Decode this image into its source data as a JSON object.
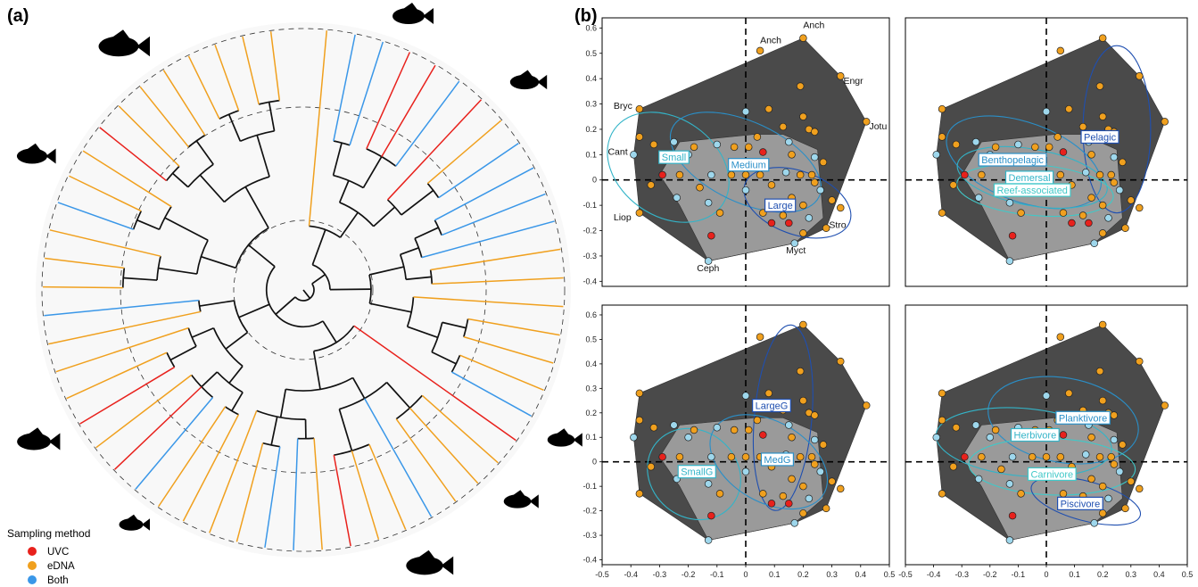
{
  "panel_a": {
    "label": "(a)",
    "legend": {
      "title": "Sampling method",
      "items": [
        {
          "name": "UVC",
          "color": "#e8211c"
        },
        {
          "name": "eDNA",
          "color": "#f0a01e"
        },
        {
          "name": "Both",
          "color": "#3a97e8"
        }
      ]
    },
    "branch_colors": {
      "uvc": "#e8211c",
      "edna": "#f0a01e",
      "both": "#3a97e8",
      "internal": "#111111"
    },
    "fish_icons": [
      "boxfish-silhouette-icon",
      "reef-fish-silhouette-icon",
      "herring-silhouette-icon",
      "angelfish-silhouette-icon",
      "tuna-silhouette-icon",
      "grouper-silhouette-icon",
      "jack-silhouette-icon",
      "lionfish-silhouette-icon",
      "damselfish-silhouette-icon"
    ]
  },
  "panel_b": {
    "label": "(b)"
  },
  "chart_data": {
    "type": "scatter",
    "description": "Four functional-space scatter panels sharing the same points; hulls and ellipses per grouping",
    "xlim": [
      -0.5,
      0.5
    ],
    "ylim": [
      -0.42,
      0.64
    ],
    "xticks": [
      "-0.5",
      "-0.4",
      "-0.3",
      "-0.2",
      "-0.1",
      "0",
      "0.1",
      "0.2",
      "0.3",
      "0.4",
      "0.5"
    ],
    "yticks": [
      "0.6",
      "0.5",
      "0.4",
      "0.3",
      "0.2",
      "0.1",
      "0",
      "-0.1",
      "-0.2",
      "-0.3",
      "-0.4"
    ],
    "colors": {
      "uvc": "#e8211c",
      "edna": "#f0a01e",
      "both": "#9ed7ec",
      "outer_hull": "#4a4a4a",
      "inner_hull": "#9a9a9a"
    },
    "outer_hull": [
      [
        -0.37,
        0.28
      ],
      [
        0.2,
        0.56
      ],
      [
        0.33,
        0.41
      ],
      [
        0.42,
        0.23
      ],
      [
        0.28,
        -0.19
      ],
      [
        0.17,
        -0.25
      ],
      [
        -0.13,
        -0.32
      ],
      [
        -0.37,
        -0.13
      ],
      [
        -0.39,
        0.1
      ]
    ],
    "inner_hull": [
      [
        -0.23,
        0.15
      ],
      [
        0.03,
        0.18
      ],
      [
        0.13,
        0.18
      ],
      [
        0.25,
        0.12
      ],
      [
        0.27,
        -0.15
      ],
      [
        0.17,
        -0.25
      ],
      [
        -0.13,
        -0.32
      ],
      [
        -0.23,
        -0.1
      ],
      [
        -0.3,
        0.02
      ]
    ],
    "points": [
      {
        "x": 0.2,
        "y": 0.56,
        "g": "edna"
      },
      {
        "x": 0.05,
        "y": 0.51,
        "g": "edna"
      },
      {
        "x": 0.33,
        "y": 0.41,
        "g": "edna"
      },
      {
        "x": 0.19,
        "y": 0.37,
        "g": "edna"
      },
      {
        "x": 0.42,
        "y": 0.23,
        "g": "edna"
      },
      {
        "x": -0.37,
        "y": 0.28,
        "g": "edna"
      },
      {
        "x": 0.0,
        "y": 0.27,
        "g": "both"
      },
      {
        "x": 0.08,
        "y": 0.28,
        "g": "edna"
      },
      {
        "x": 0.13,
        "y": 0.21,
        "g": "edna"
      },
      {
        "x": 0.2,
        "y": 0.25,
        "g": "edna"
      },
      {
        "x": 0.22,
        "y": 0.2,
        "g": "edna"
      },
      {
        "x": 0.24,
        "y": 0.19,
        "g": "edna"
      },
      {
        "x": -0.37,
        "y": 0.17,
        "g": "edna"
      },
      {
        "x": -0.32,
        "y": 0.14,
        "g": "edna"
      },
      {
        "x": -0.25,
        "y": 0.15,
        "g": "both"
      },
      {
        "x": -0.18,
        "y": 0.13,
        "g": "edna"
      },
      {
        "x": -0.1,
        "y": 0.14,
        "g": "both"
      },
      {
        "x": -0.04,
        "y": 0.13,
        "g": "edna"
      },
      {
        "x": 0.01,
        "y": 0.13,
        "g": "edna"
      },
      {
        "x": 0.04,
        "y": 0.17,
        "g": "edna"
      },
      {
        "x": 0.15,
        "y": 0.15,
        "g": "both"
      },
      {
        "x": 0.16,
        "y": 0.1,
        "g": "edna"
      },
      {
        "x": -0.39,
        "y": 0.1,
        "g": "both"
      },
      {
        "x": -0.2,
        "y": 0.1,
        "g": "both"
      },
      {
        "x": 0.06,
        "y": 0.11,
        "g": "uvc"
      },
      {
        "x": 0.24,
        "y": 0.09,
        "g": "both"
      },
      {
        "x": 0.27,
        "y": 0.07,
        "g": "edna"
      },
      {
        "x": -0.29,
        "y": 0.02,
        "g": "uvc"
      },
      {
        "x": -0.23,
        "y": 0.02,
        "g": "edna"
      },
      {
        "x": -0.12,
        "y": 0.02,
        "g": "both"
      },
      {
        "x": -0.05,
        "y": 0.02,
        "g": "edna"
      },
      {
        "x": 0.0,
        "y": 0.02,
        "g": "edna"
      },
      {
        "x": 0.05,
        "y": 0.02,
        "g": "edna"
      },
      {
        "x": 0.14,
        "y": 0.03,
        "g": "both"
      },
      {
        "x": 0.19,
        "y": 0.02,
        "g": "edna"
      },
      {
        "x": 0.23,
        "y": 0.02,
        "g": "edna"
      },
      {
        "x": -0.33,
        "y": -0.02,
        "g": "edna"
      },
      {
        "x": -0.16,
        "y": -0.03,
        "g": "edna"
      },
      {
        "x": 0.09,
        "y": -0.02,
        "g": "edna"
      },
      {
        "x": 0.24,
        "y": -0.01,
        "g": "edna"
      },
      {
        "x": 0.26,
        "y": -0.04,
        "g": "both"
      },
      {
        "x": 0.0,
        "y": -0.04,
        "g": "both"
      },
      {
        "x": -0.24,
        "y": -0.07,
        "g": "both"
      },
      {
        "x": -0.13,
        "y": -0.09,
        "g": "both"
      },
      {
        "x": 0.16,
        "y": -0.07,
        "g": "edna"
      },
      {
        "x": 0.2,
        "y": -0.1,
        "g": "edna"
      },
      {
        "x": 0.3,
        "y": -0.08,
        "g": "edna"
      },
      {
        "x": 0.33,
        "y": -0.11,
        "g": "edna"
      },
      {
        "x": -0.09,
        "y": -0.13,
        "g": "edna"
      },
      {
        "x": 0.06,
        "y": -0.13,
        "g": "edna"
      },
      {
        "x": 0.13,
        "y": -0.14,
        "g": "edna"
      },
      {
        "x": 0.22,
        "y": -0.15,
        "g": "both"
      },
      {
        "x": -0.37,
        "y": -0.13,
        "g": "edna"
      },
      {
        "x": 0.09,
        "y": -0.17,
        "g": "uvc"
      },
      {
        "x": 0.15,
        "y": -0.17,
        "g": "uvc"
      },
      {
        "x": -0.12,
        "y": -0.22,
        "g": "uvc"
      },
      {
        "x": 0.28,
        "y": -0.19,
        "g": "edna"
      },
      {
        "x": 0.2,
        "y": -0.21,
        "g": "edna"
      },
      {
        "x": 0.17,
        "y": -0.25,
        "g": "both"
      },
      {
        "x": -0.13,
        "y": -0.32,
        "g": "both"
      }
    ],
    "annotations": [
      {
        "text": "Anch",
        "x": 0.2,
        "y": 0.6
      },
      {
        "text": "Anch",
        "x": 0.05,
        "y": 0.54
      },
      {
        "text": "Engr",
        "x": 0.34,
        "y": 0.38
      },
      {
        "text": "Bryc",
        "x": -0.46,
        "y": 0.28
      },
      {
        "text": "Jotu",
        "x": 0.43,
        "y": 0.2
      },
      {
        "text": "Cant",
        "x": -0.48,
        "y": 0.1
      },
      {
        "text": "Liop",
        "x": -0.46,
        "y": -0.16
      },
      {
        "text": "Stro",
        "x": 0.29,
        "y": -0.19
      },
      {
        "text": "Myct",
        "x": 0.14,
        "y": -0.29
      },
      {
        "text": "Ceph",
        "x": -0.17,
        "y": -0.36
      }
    ],
    "panels": [
      {
        "name": "size",
        "groups": [
          {
            "label": "Small",
            "lx": -0.25,
            "ly": 0.09,
            "color": "#33b4c8",
            "ellipse": {
              "cx": -0.27,
              "cy": 0.05,
              "rx": 0.17,
              "ry": 0.26,
              "angle": -55
            }
          },
          {
            "label": "Medium",
            "lx": 0.01,
            "ly": 0.06,
            "color": "#2a8fc8",
            "ellipse": {
              "cx": 0.0,
              "cy": 0.07,
              "rx": 0.14,
              "ry": 0.32,
              "angle": -65
            }
          },
          {
            "label": "Large",
            "lx": 0.12,
            "ly": -0.1,
            "color": "#1f4fb0",
            "ellipse": {
              "cx": 0.18,
              "cy": -0.09,
              "rx": 0.11,
              "ry": 0.22,
              "angle": -70
            }
          }
        ]
      },
      {
        "name": "habitat",
        "groups": [
          {
            "label": "Pelagic",
            "lx": 0.19,
            "ly": 0.17,
            "color": "#1f4fb0",
            "ellipse": {
              "cx": 0.25,
              "cy": 0.2,
              "rx": 0.12,
              "ry": 0.33,
              "angle": 0
            }
          },
          {
            "label": "Benthopelagic",
            "lx": -0.12,
            "ly": 0.08,
            "color": "#2a8fc8",
            "ellipse": {
              "cx": -0.08,
              "cy": 0.07,
              "rx": 0.14,
              "ry": 0.32,
              "angle": -70
            }
          },
          {
            "label": "Demersal",
            "lx": -0.06,
            "ly": 0.01,
            "color": "#33b4c8",
            "ellipse": {
              "cx": -0.05,
              "cy": 0.01,
              "rx": 0.1,
              "ry": 0.3,
              "angle": -80
            }
          },
          {
            "label": "Reef-associated",
            "lx": -0.05,
            "ly": -0.04,
            "color": "#40c8c8",
            "ellipse": {
              "cx": -0.04,
              "cy": -0.04,
              "rx": 0.09,
              "ry": 0.31,
              "angle": -85
            }
          }
        ]
      },
      {
        "name": "growth",
        "groups": [
          {
            "label": "LargeG",
            "lx": 0.09,
            "ly": 0.23,
            "color": "#1f4fb0",
            "ellipse": {
              "cx": 0.13,
              "cy": 0.18,
              "rx": 0.1,
              "ry": 0.38,
              "angle": 5
            }
          },
          {
            "label": "SmallG",
            "lx": -0.17,
            "ly": -0.04,
            "color": "#33b4c8",
            "ellipse": {
              "cx": -0.18,
              "cy": -0.05,
              "rx": 0.15,
              "ry": 0.2,
              "angle": -50
            }
          },
          {
            "label": "MedG",
            "lx": 0.11,
            "ly": 0.01,
            "color": "#2a8fc8",
            "ellipse": {
              "cx": 0.08,
              "cy": 0.0,
              "rx": 0.14,
              "ry": 0.26,
              "angle": -60
            }
          }
        ]
      },
      {
        "name": "diet",
        "groups": [
          {
            "label": "Planktivore",
            "lx": 0.13,
            "ly": 0.18,
            "color": "#2a8fc8",
            "ellipse": {
              "cx": 0.06,
              "cy": 0.17,
              "rx": 0.15,
              "ry": 0.31,
              "angle": -80
            }
          },
          {
            "label": "Herbivore",
            "lx": -0.04,
            "ly": 0.11,
            "color": "#33b4c8",
            "ellipse": {
              "cx": -0.08,
              "cy": 0.08,
              "rx": 0.12,
              "ry": 0.36,
              "angle": -85
            }
          },
          {
            "label": "Carnivore",
            "lx": 0.02,
            "ly": -0.05,
            "color": "#40c8c8",
            "ellipse": {
              "cx": 0.02,
              "cy": -0.02,
              "rx": 0.1,
              "ry": 0.34,
              "angle": -88
            }
          },
          {
            "label": "Piscivore",
            "lx": 0.12,
            "ly": -0.17,
            "color": "#1f4fb0",
            "ellipse": {
              "cx": 0.14,
              "cy": -0.16,
              "rx": 0.07,
              "ry": 0.23,
              "angle": -75
            }
          }
        ]
      }
    ]
  }
}
